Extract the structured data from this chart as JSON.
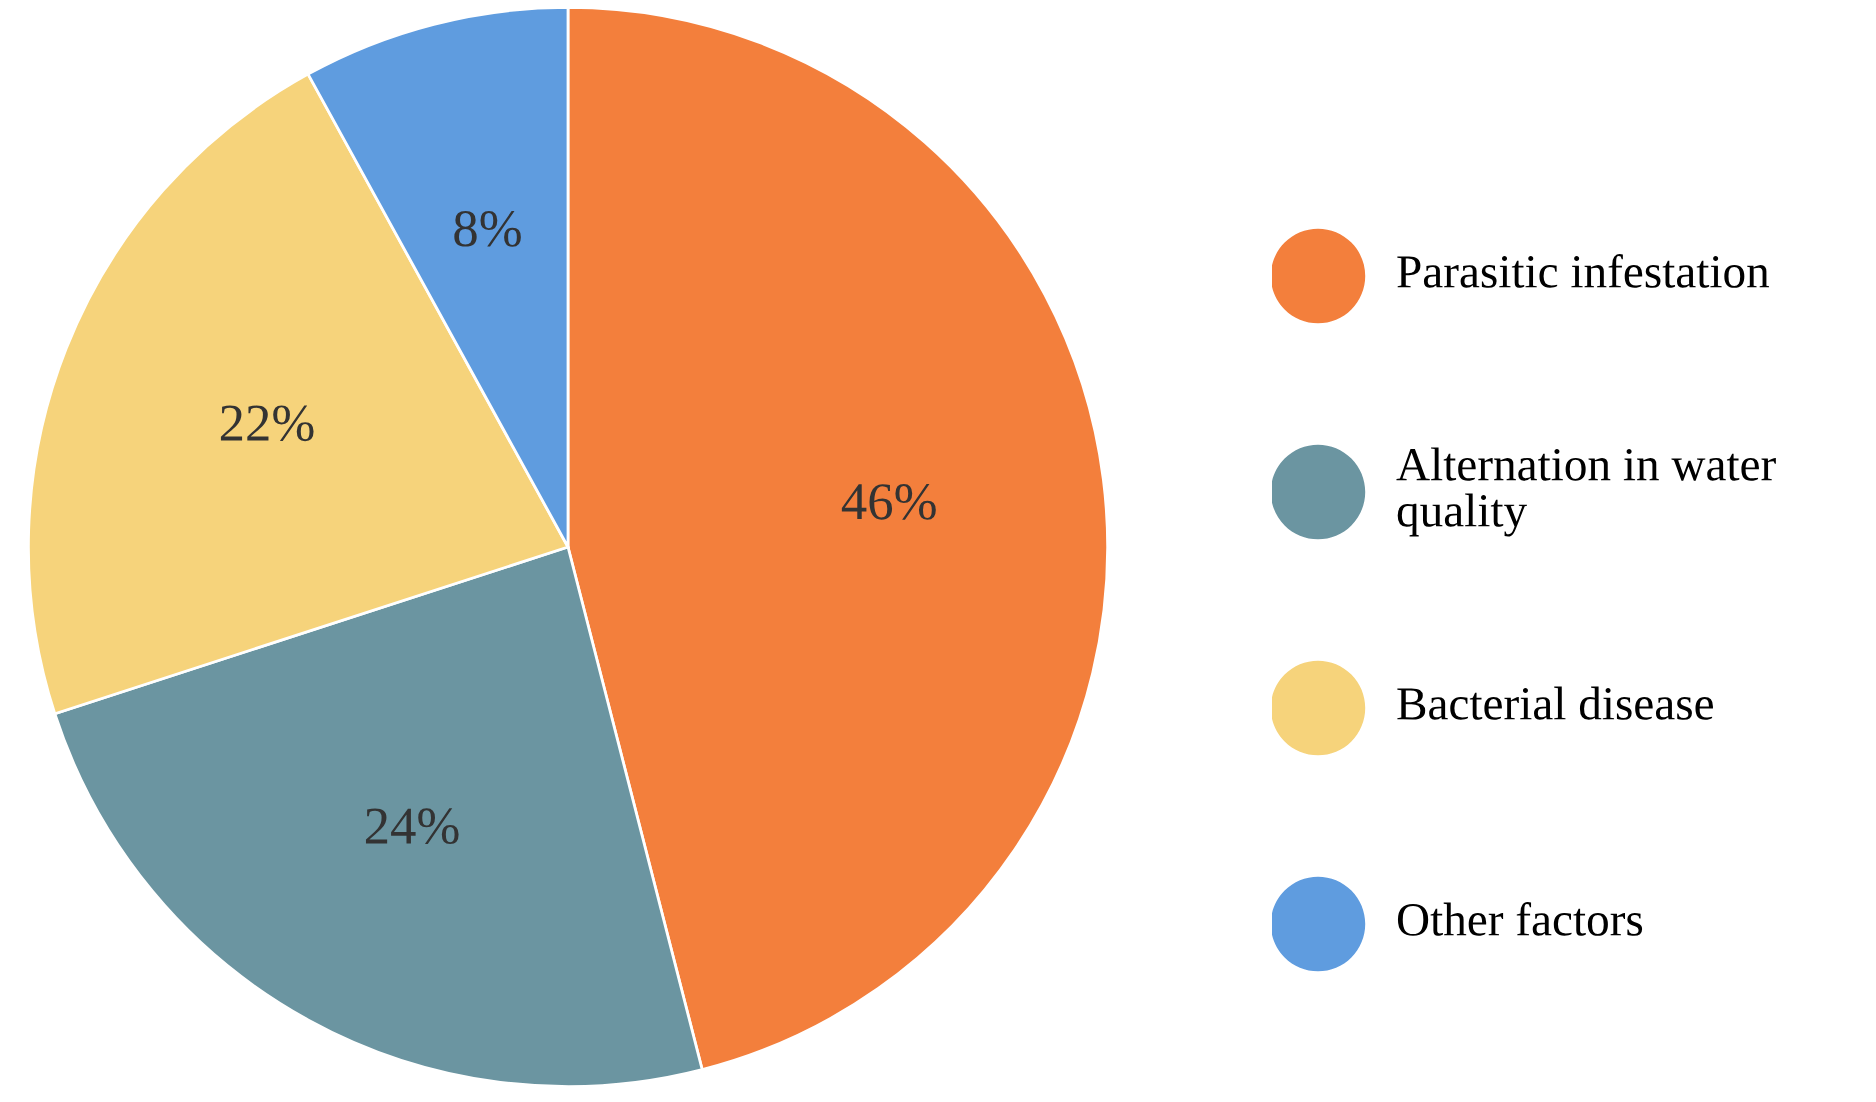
{
  "chart_data": {
    "type": "pie",
    "categories": [
      "Parasitic infestation",
      "Alternation in water quality",
      "Bacterial disease",
      "Other factors"
    ],
    "values": [
      46,
      24,
      22,
      8
    ],
    "colors": [
      "#f37f3c",
      "#6b95a1",
      "#f6d37b",
      "#5f9cdf"
    ],
    "value_labels": [
      "46%",
      "24%",
      "22%",
      "8%"
    ],
    "legend": "right"
  }
}
